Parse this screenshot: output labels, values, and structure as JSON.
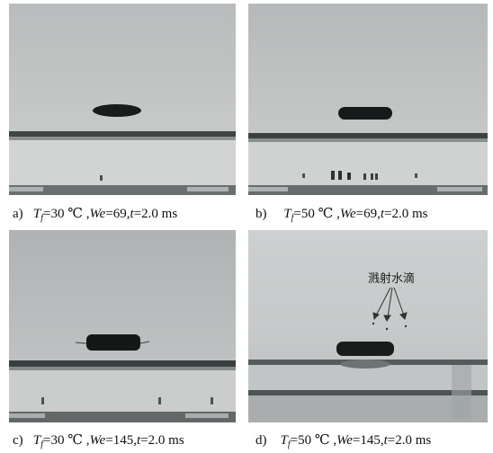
{
  "panels": [
    {
      "letter": "a)",
      "tf_symbol": "T",
      "tf_sub": "f",
      "tf_value": "=30 ℃ ,",
      "we_symbol": "We",
      "we_value": "=69,",
      "t_symbol": "t",
      "t_value": "=2.0 ms"
    },
    {
      "letter": "b)",
      "tf_symbol": "T",
      "tf_sub": "f",
      "tf_value": "=50 ℃ ,",
      "we_symbol": "We",
      "we_value": "=69,",
      "t_symbol": "t",
      "t_value": "=2.0 ms"
    },
    {
      "letter": "c)",
      "tf_symbol": "T",
      "tf_sub": "f",
      "tf_value": "=30 ℃ ,",
      "we_symbol": "We",
      "we_value": "=145,",
      "t_symbol": "t",
      "t_value": "=2.0 ms"
    },
    {
      "letter": "d)",
      "tf_symbol": "T",
      "tf_sub": "f",
      "tf_value": "=50 ℃ ,",
      "we_symbol": "We",
      "we_value": "=145,",
      "t_symbol": "t",
      "t_value": "=2.0 ms"
    }
  ],
  "annotation": "溅射水滴"
}
